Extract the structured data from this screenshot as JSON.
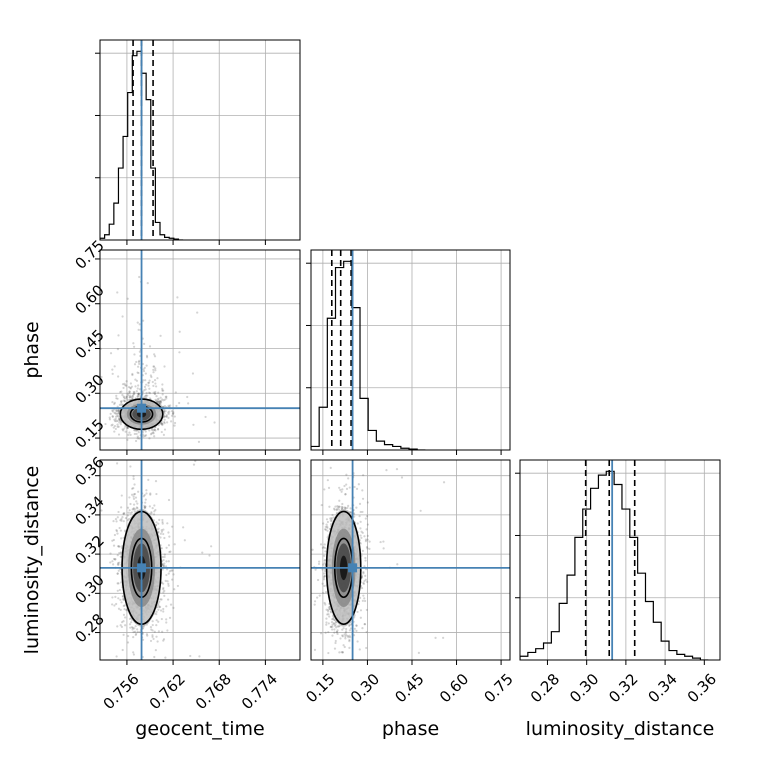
{
  "chart_data": {
    "type": "corner",
    "parameters": [
      {
        "name": "geocent_time",
        "label": "geocent_time",
        "range": [
          0.7525,
          0.7785
        ],
        "ticks": [
          0.756,
          0.762,
          0.768,
          0.774
        ],
        "tick_labels": [
          "0.756",
          "0.762",
          "0.768",
          "0.774"
        ],
        "truth": 0.7579,
        "quantiles": [
          0.7568,
          0.7579,
          0.7594
        ],
        "histogram": {
          "bin_edges": [
            0.7525,
            0.7531,
            0.7537,
            0.7543,
            0.7549,
            0.7555,
            0.7561,
            0.7567,
            0.7573,
            0.7579,
            0.7585,
            0.7591,
            0.7597,
            0.7603,
            0.7609,
            0.7615,
            0.7621,
            0.7627,
            0.7633
          ],
          "counts": [
            2,
            6,
            18,
            42,
            82,
            118,
            168,
            210,
            215,
            190,
            160,
            82,
            20,
            6,
            3,
            2,
            1,
            0
          ]
        }
      },
      {
        "name": "phase",
        "label": "phase",
        "ticks": [
          0.15,
          0.3,
          0.45,
          0.6,
          0.75
        ],
        "tick_labels": [
          "0.15",
          "0.30",
          "0.45",
          "0.60",
          "0.75"
        ],
        "range": [
          0.11,
          0.78
        ],
        "truth": 0.25,
        "quantiles": [
          0.18,
          0.21,
          0.245
        ],
        "histogram": {
          "bin_edges": [
            0.11,
            0.1375,
            0.165,
            0.1925,
            0.22,
            0.2475,
            0.275,
            0.3025,
            0.33,
            0.3575,
            0.385,
            0.4125,
            0.44,
            0.4675,
            0.495
          ],
          "counts": [
            4,
            48,
            148,
            205,
            212,
            160,
            58,
            22,
            10,
            6,
            4,
            2,
            1,
            0
          ]
        }
      },
      {
        "name": "luminosity_distance",
        "label": "luminosity_distance",
        "ticks": [
          0.28,
          0.3,
          0.32,
          0.34,
          0.36
        ],
        "tick_labels": [
          "0.28",
          "0.30",
          "0.32",
          "0.34",
          "0.36"
        ],
        "range": [
          0.266,
          0.368
        ],
        "truth": 0.313,
        "quantiles": [
          0.2995,
          0.3115,
          0.3245
        ],
        "histogram": {
          "bin_edges": [
            0.266,
            0.27,
            0.274,
            0.278,
            0.282,
            0.286,
            0.29,
            0.294,
            0.298,
            0.302,
            0.306,
            0.31,
            0.314,
            0.318,
            0.322,
            0.326,
            0.33,
            0.334,
            0.338,
            0.342,
            0.346,
            0.35,
            0.354,
            0.358,
            0.362
          ],
          "counts": [
            4,
            8,
            12,
            18,
            30,
            60,
            90,
            130,
            160,
            182,
            196,
            200,
            186,
            160,
            130,
            92,
            62,
            40,
            20,
            10,
            6,
            4,
            2,
            0
          ]
        }
      }
    ],
    "pairs": [
      {
        "x": "geocent_time",
        "y": "phase",
        "center": [
          0.7579,
          0.23
        ],
        "spread": [
          0.0012,
          0.022
        ],
        "scatter_extent": [
          [
            0.7525,
            0.774
          ],
          [
            0.12,
            0.72
          ]
        ]
      },
      {
        "x": "geocent_time",
        "y": "luminosity_distance",
        "center": [
          0.7579,
          0.313
        ],
        "spread": [
          0.0011,
          0.0125
        ],
        "scatter_extent": [
          [
            0.7525,
            0.774
          ],
          [
            0.266,
            0.368
          ]
        ]
      },
      {
        "x": "phase",
        "y": "luminosity_distance",
        "center": [
          0.22,
          0.313
        ],
        "spread": [
          0.025,
          0.0125
        ],
        "scatter_extent": [
          [
            0.11,
            0.75
          ],
          [
            0.266,
            0.368
          ]
        ]
      }
    ],
    "grid": true,
    "colors": {
      "truth": "#4682b4",
      "contour": "#000000",
      "scatter": "#555555",
      "grid": "#b0b0b0"
    }
  }
}
